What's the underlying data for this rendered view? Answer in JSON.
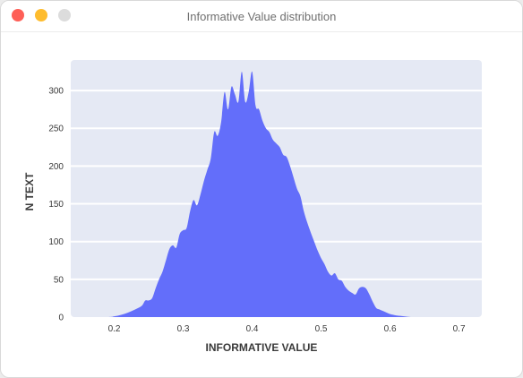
{
  "window": {
    "title": "Informative Value distribution",
    "controls": [
      {
        "name": "close",
        "color": "#fe5f57"
      },
      {
        "name": "minimize",
        "color": "#febc2e"
      },
      {
        "name": "zoom",
        "color": "#dcdcdc"
      }
    ]
  },
  "colors": {
    "plot_background": "#e5e9f4",
    "gridline": "#ffffff",
    "fill": "#636efa"
  },
  "chart_data": {
    "type": "area",
    "xlabel": "INFORMATIVE VALUE",
    "ylabel": "N TEXT",
    "xlim": [
      0.137,
      0.733
    ],
    "ylim": [
      0,
      325
    ],
    "xticks": [
      0.2,
      0.3,
      0.4,
      0.5,
      0.6,
      0.7
    ],
    "xtick_labels": [
      "0.2",
      "0.3",
      "0.4",
      "0.5",
      "0.6",
      "0.7"
    ],
    "yticks": [
      0,
      50,
      100,
      150,
      200,
      250,
      300
    ],
    "ytick_labels": [
      "0",
      "50",
      "100",
      "150",
      "200",
      "250",
      "300"
    ],
    "grid": true,
    "series": [
      {
        "x": [
          0.137,
          0.19,
          0.2,
          0.21,
          0.22,
          0.23,
          0.24,
          0.245,
          0.25,
          0.255,
          0.26,
          0.265,
          0.27,
          0.275,
          0.28,
          0.285,
          0.29,
          0.295,
          0.3,
          0.305,
          0.31,
          0.315,
          0.32,
          0.325,
          0.33,
          0.335,
          0.34,
          0.345,
          0.35,
          0.355,
          0.36,
          0.365,
          0.37,
          0.375,
          0.38,
          0.385,
          0.39,
          0.395,
          0.4,
          0.405,
          0.41,
          0.415,
          0.42,
          0.425,
          0.43,
          0.435,
          0.44,
          0.445,
          0.45,
          0.455,
          0.46,
          0.465,
          0.47,
          0.475,
          0.48,
          0.485,
          0.49,
          0.495,
          0.5,
          0.505,
          0.51,
          0.515,
          0.52,
          0.525,
          0.53,
          0.535,
          0.54,
          0.545,
          0.55,
          0.555,
          0.56,
          0.565,
          0.57,
          0.575,
          0.58,
          0.585,
          0.59,
          0.595,
          0.6,
          0.605,
          0.61,
          0.62,
          0.63,
          0.64,
          0.65,
          0.66,
          0.67,
          0.68,
          0.69,
          0.7,
          0.733
        ],
        "y": [
          0,
          0,
          1,
          3,
          6,
          10,
          15,
          22,
          22,
          25,
          38,
          50,
          60,
          75,
          90,
          95,
          92,
          110,
          115,
          118,
          140,
          155,
          148,
          162,
          180,
          195,
          210,
          245,
          240,
          258,
          298,
          275,
          305,
          295,
          285,
          325,
          285,
          298,
          325,
          280,
          275,
          260,
          250,
          245,
          235,
          230,
          225,
          215,
          212,
          200,
          185,
          170,
          160,
          140,
          125,
          112,
          100,
          88,
          78,
          70,
          60,
          55,
          58,
          50,
          48,
          40,
          35,
          32,
          30,
          38,
          40,
          38,
          30,
          20,
          12,
          10,
          8,
          6,
          4,
          3,
          2,
          1,
          0,
          0,
          0,
          0,
          0,
          0,
          0,
          0,
          0
        ]
      }
    ]
  }
}
